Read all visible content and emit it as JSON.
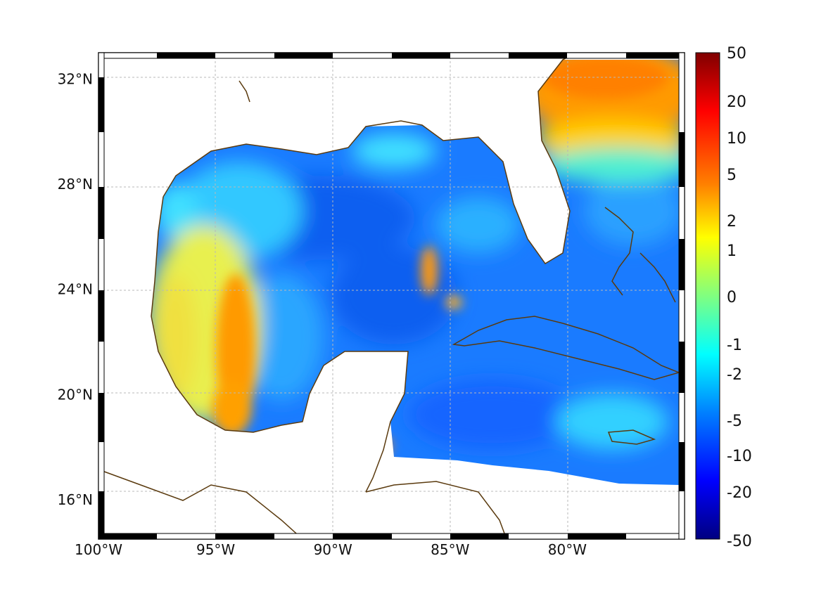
{
  "map": {
    "lon_range": [
      -100,
      -75
    ],
    "lat_range": [
      14.5,
      33
    ],
    "lon_ticks": [
      {
        "value": -100,
        "label": "100°W"
      },
      {
        "value": -95,
        "label": "95°W"
      },
      {
        "value": -90,
        "label": "90°W"
      },
      {
        "value": -85,
        "label": "85°W"
      },
      {
        "value": -80,
        "label": "80°W"
      }
    ],
    "lat_ticks": [
      {
        "value": 32,
        "label": "32°N"
      },
      {
        "value": 28,
        "label": "28°N"
      },
      {
        "value": 24,
        "label": "24°N"
      },
      {
        "value": 20,
        "label": "20°N"
      },
      {
        "value": 16,
        "label": "16°N"
      }
    ],
    "gridlines": true,
    "coastline_color": "#5a3a0e",
    "field_colors": {
      "dominant": "#1a7bff",
      "warm_anomaly": "#ff9a00",
      "neutral": "#30d0ff"
    }
  },
  "colorbar": {
    "labels": [
      "50",
      "20",
      "10",
      "5",
      "2",
      "1",
      "0",
      "-1",
      "-2",
      "-5",
      "-10",
      "-20",
      "-50"
    ],
    "colormap": [
      "#800000",
      "#ff0000",
      "#ff8000",
      "#ffff00",
      "#80ff80",
      "#00ffff",
      "#0080ff",
      "#0000ff",
      "#000080"
    ]
  }
}
